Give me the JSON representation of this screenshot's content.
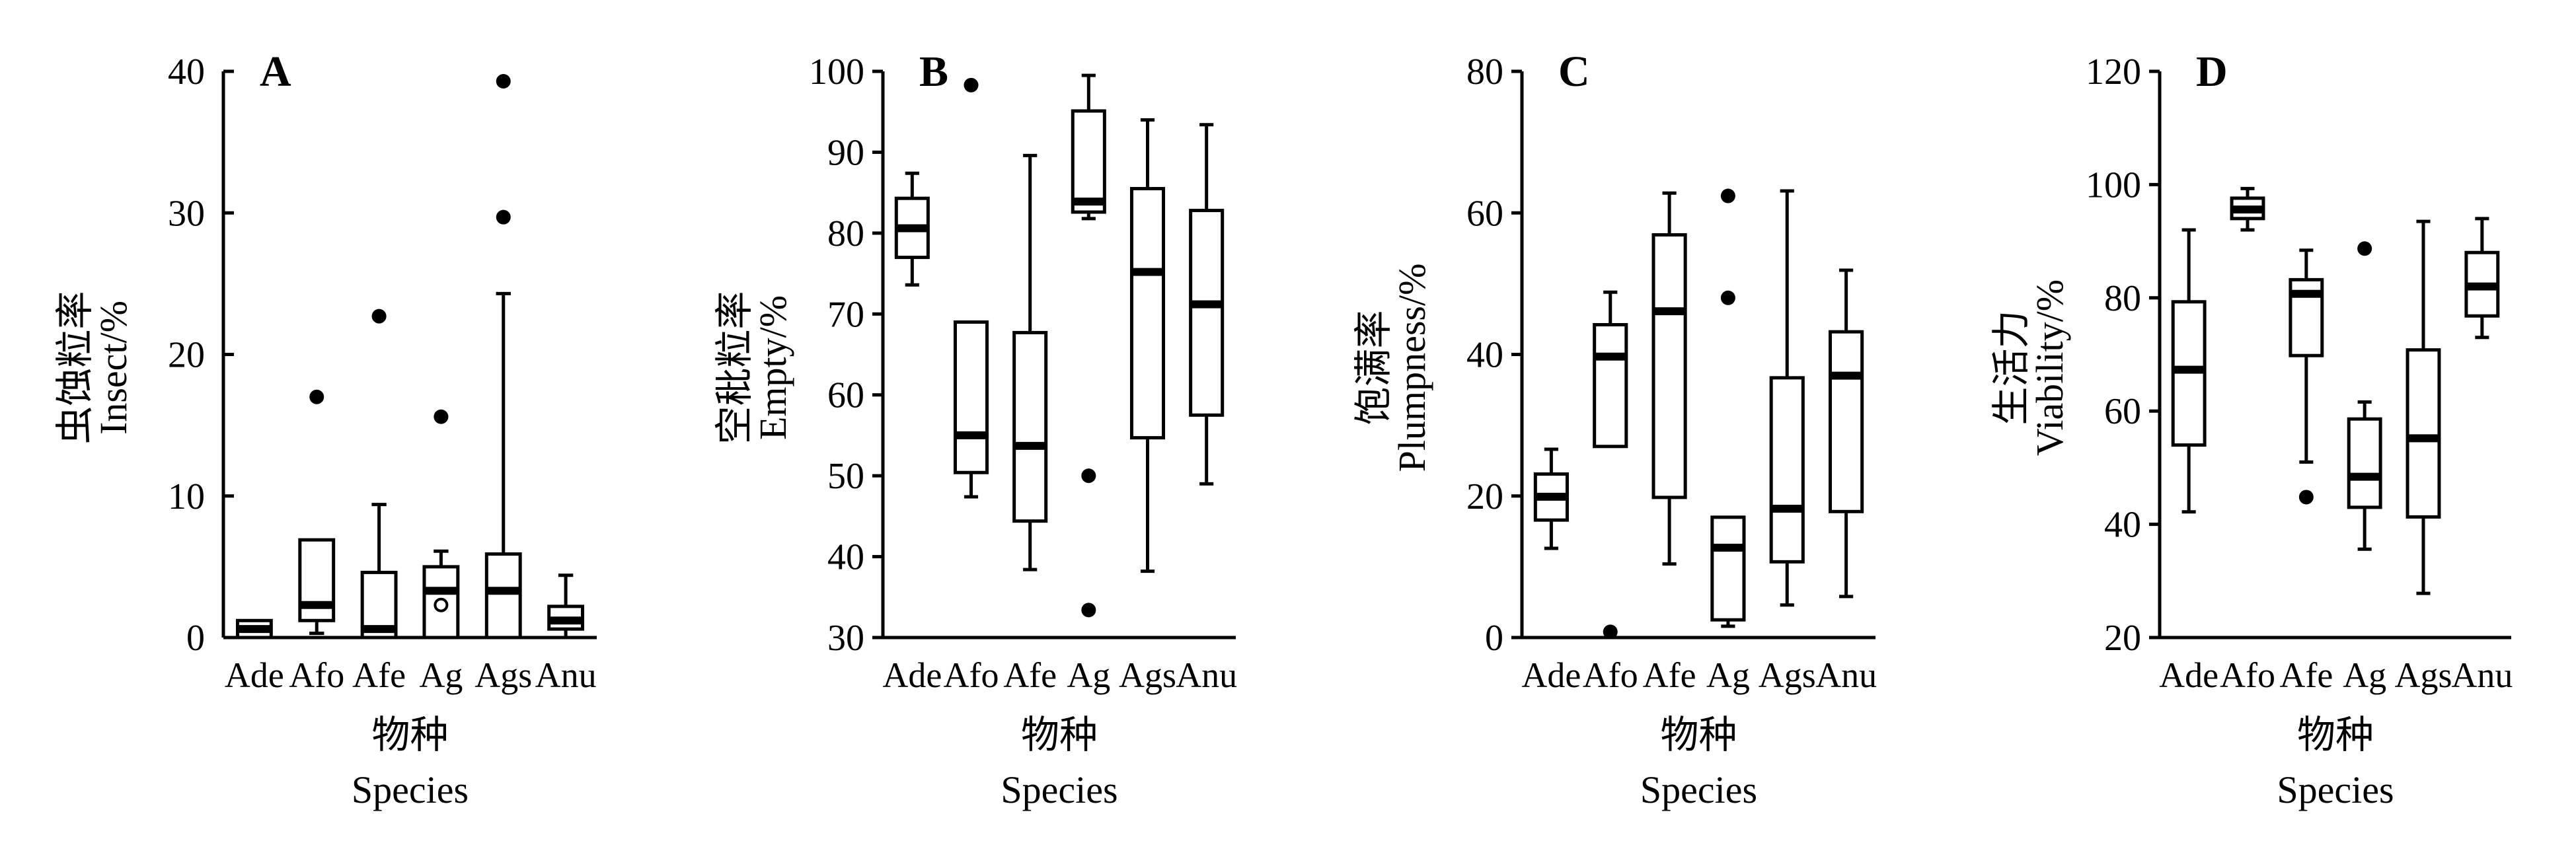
{
  "chart_data": [
    {
      "type": "box",
      "panel_label": "A",
      "ylabel_cn": "虫蚀粒率",
      "ylabel_en": "Insect/%",
      "xlabel_cn": "物种",
      "xlabel_en": "Species",
      "ylim": [
        0,
        40
      ],
      "yticks": [
        0,
        10,
        20,
        30,
        40
      ],
      "categories": [
        "Ade",
        "Afo",
        "Afe",
        "Ag",
        "Ags",
        "Anu"
      ],
      "boxes": [
        {
          "min": 0,
          "q1": 0,
          "median": 0.6,
          "q3": 1.2,
          "max": 1.2,
          "outliers": []
        },
        {
          "min": 0.3,
          "q1": 1.2,
          "median": 2.3,
          "q3": 6.9,
          "max": 6.9,
          "outliers": [
            17.0
          ]
        },
        {
          "min": 0,
          "q1": 0,
          "median": 0.6,
          "q3": 4.6,
          "max": 9.4,
          "outliers": [
            22.7
          ]
        },
        {
          "min": 0,
          "q1": 0,
          "median": 3.3,
          "q3": 5.0,
          "max": 6.1,
          "outliers": [
            15.6
          ],
          "mean": 2.3
        },
        {
          "min": 0,
          "q1": 0,
          "median": 3.3,
          "q3": 5.9,
          "max": 24.3,
          "outliers": [
            29.7,
            39.3
          ]
        },
        {
          "min": 0,
          "q1": 0.6,
          "median": 1.2,
          "q3": 2.2,
          "max": 4.4,
          "outliers": []
        }
      ]
    },
    {
      "type": "box",
      "panel_label": "B",
      "ylabel_cn": "空秕粒率",
      "ylabel_en": "Empty/%",
      "xlabel_cn": "物种",
      "xlabel_en": "Species",
      "ylim": [
        30,
        100
      ],
      "yticks": [
        30,
        40,
        50,
        60,
        70,
        80,
        90,
        100
      ],
      "categories": [
        "Ade",
        "Afo",
        "Afe",
        "Ag",
        "Ags",
        "Anu"
      ],
      "boxes": [
        {
          "min": 73.6,
          "q1": 77.0,
          "median": 80.6,
          "q3": 84.3,
          "max": 87.4,
          "outliers": []
        },
        {
          "min": 47.4,
          "q1": 50.4,
          "median": 55.0,
          "q3": 69.0,
          "max": 69.0,
          "outliers": [
            98.3
          ]
        },
        {
          "min": 38.4,
          "q1": 44.4,
          "median": 53.7,
          "q3": 67.7,
          "max": 89.6,
          "outliers": []
        },
        {
          "min": 81.8,
          "q1": 82.6,
          "median": 83.9,
          "q3": 95.1,
          "max": 99.5,
          "outliers": [
            50.0,
            33.4
          ]
        },
        {
          "min": 38.2,
          "q1": 54.7,
          "median": 75.2,
          "q3": 85.5,
          "max": 94.0,
          "outliers": []
        },
        {
          "min": 49.0,
          "q1": 57.5,
          "median": 71.2,
          "q3": 82.8,
          "max": 93.4,
          "outliers": []
        }
      ]
    },
    {
      "type": "box",
      "panel_label": "C",
      "ylabel_cn": "饱满率",
      "ylabel_en": "Plumpness/%",
      "xlabel_cn": "物种",
      "xlabel_en": "Species",
      "ylim": [
        0,
        80
      ],
      "yticks": [
        0,
        20,
        40,
        60,
        80
      ],
      "categories": [
        "Ade",
        "Afo",
        "Afe",
        "Ag",
        "Ags",
        "Anu"
      ],
      "boxes": [
        {
          "min": 12.6,
          "q1": 16.6,
          "median": 19.9,
          "q3": 23.1,
          "max": 26.6,
          "outliers": []
        },
        {
          "min": 27.0,
          "q1": 27.0,
          "median": 39.7,
          "q3": 44.2,
          "max": 48.8,
          "outliers": [
            0.8
          ]
        },
        {
          "min": 10.4,
          "q1": 19.8,
          "median": 46.1,
          "q3": 56.9,
          "max": 62.8,
          "outliers": []
        },
        {
          "min": 1.6,
          "q1": 2.5,
          "median": 12.7,
          "q3": 17.0,
          "max": 17.0,
          "outliers": [
            62.4,
            48.0
          ]
        },
        {
          "min": 4.6,
          "q1": 10.7,
          "median": 18.2,
          "q3": 36.7,
          "max": 63.1,
          "outliers": []
        },
        {
          "min": 5.8,
          "q1": 17.8,
          "median": 37.0,
          "q3": 43.2,
          "max": 51.9,
          "outliers": []
        }
      ]
    },
    {
      "type": "box",
      "panel_label": "D",
      "ylabel_cn": "生活力",
      "ylabel_en": "Viability/%",
      "xlabel_cn": "物种",
      "xlabel_en": "Species",
      "ylim": [
        20,
        120
      ],
      "yticks": [
        20,
        40,
        60,
        80,
        100,
        120
      ],
      "categories": [
        "Ade",
        "Afo",
        "Afe",
        "Ag",
        "Ags",
        "Anu"
      ],
      "boxes": [
        {
          "min": 42.2,
          "q1": 54.0,
          "median": 67.3,
          "q3": 79.3,
          "max": 92.0,
          "outliers": []
        },
        {
          "min": 92.0,
          "q1": 94.0,
          "median": 95.6,
          "q3": 97.6,
          "max": 99.3,
          "outliers": []
        },
        {
          "min": 51.0,
          "q1": 69.8,
          "median": 80.7,
          "q3": 83.2,
          "max": 88.4,
          "outliers": [
            44.8
          ]
        },
        {
          "min": 35.6,
          "q1": 43.0,
          "median": 48.4,
          "q3": 58.6,
          "max": 61.6,
          "outliers": [
            88.7
          ]
        },
        {
          "min": 27.8,
          "q1": 41.3,
          "median": 55.2,
          "q3": 70.8,
          "max": 93.5,
          "outliers": []
        },
        {
          "min": 73.0,
          "q1": 76.8,
          "median": 82.0,
          "q3": 88.0,
          "max": 94.0,
          "outliers": []
        }
      ]
    }
  ]
}
